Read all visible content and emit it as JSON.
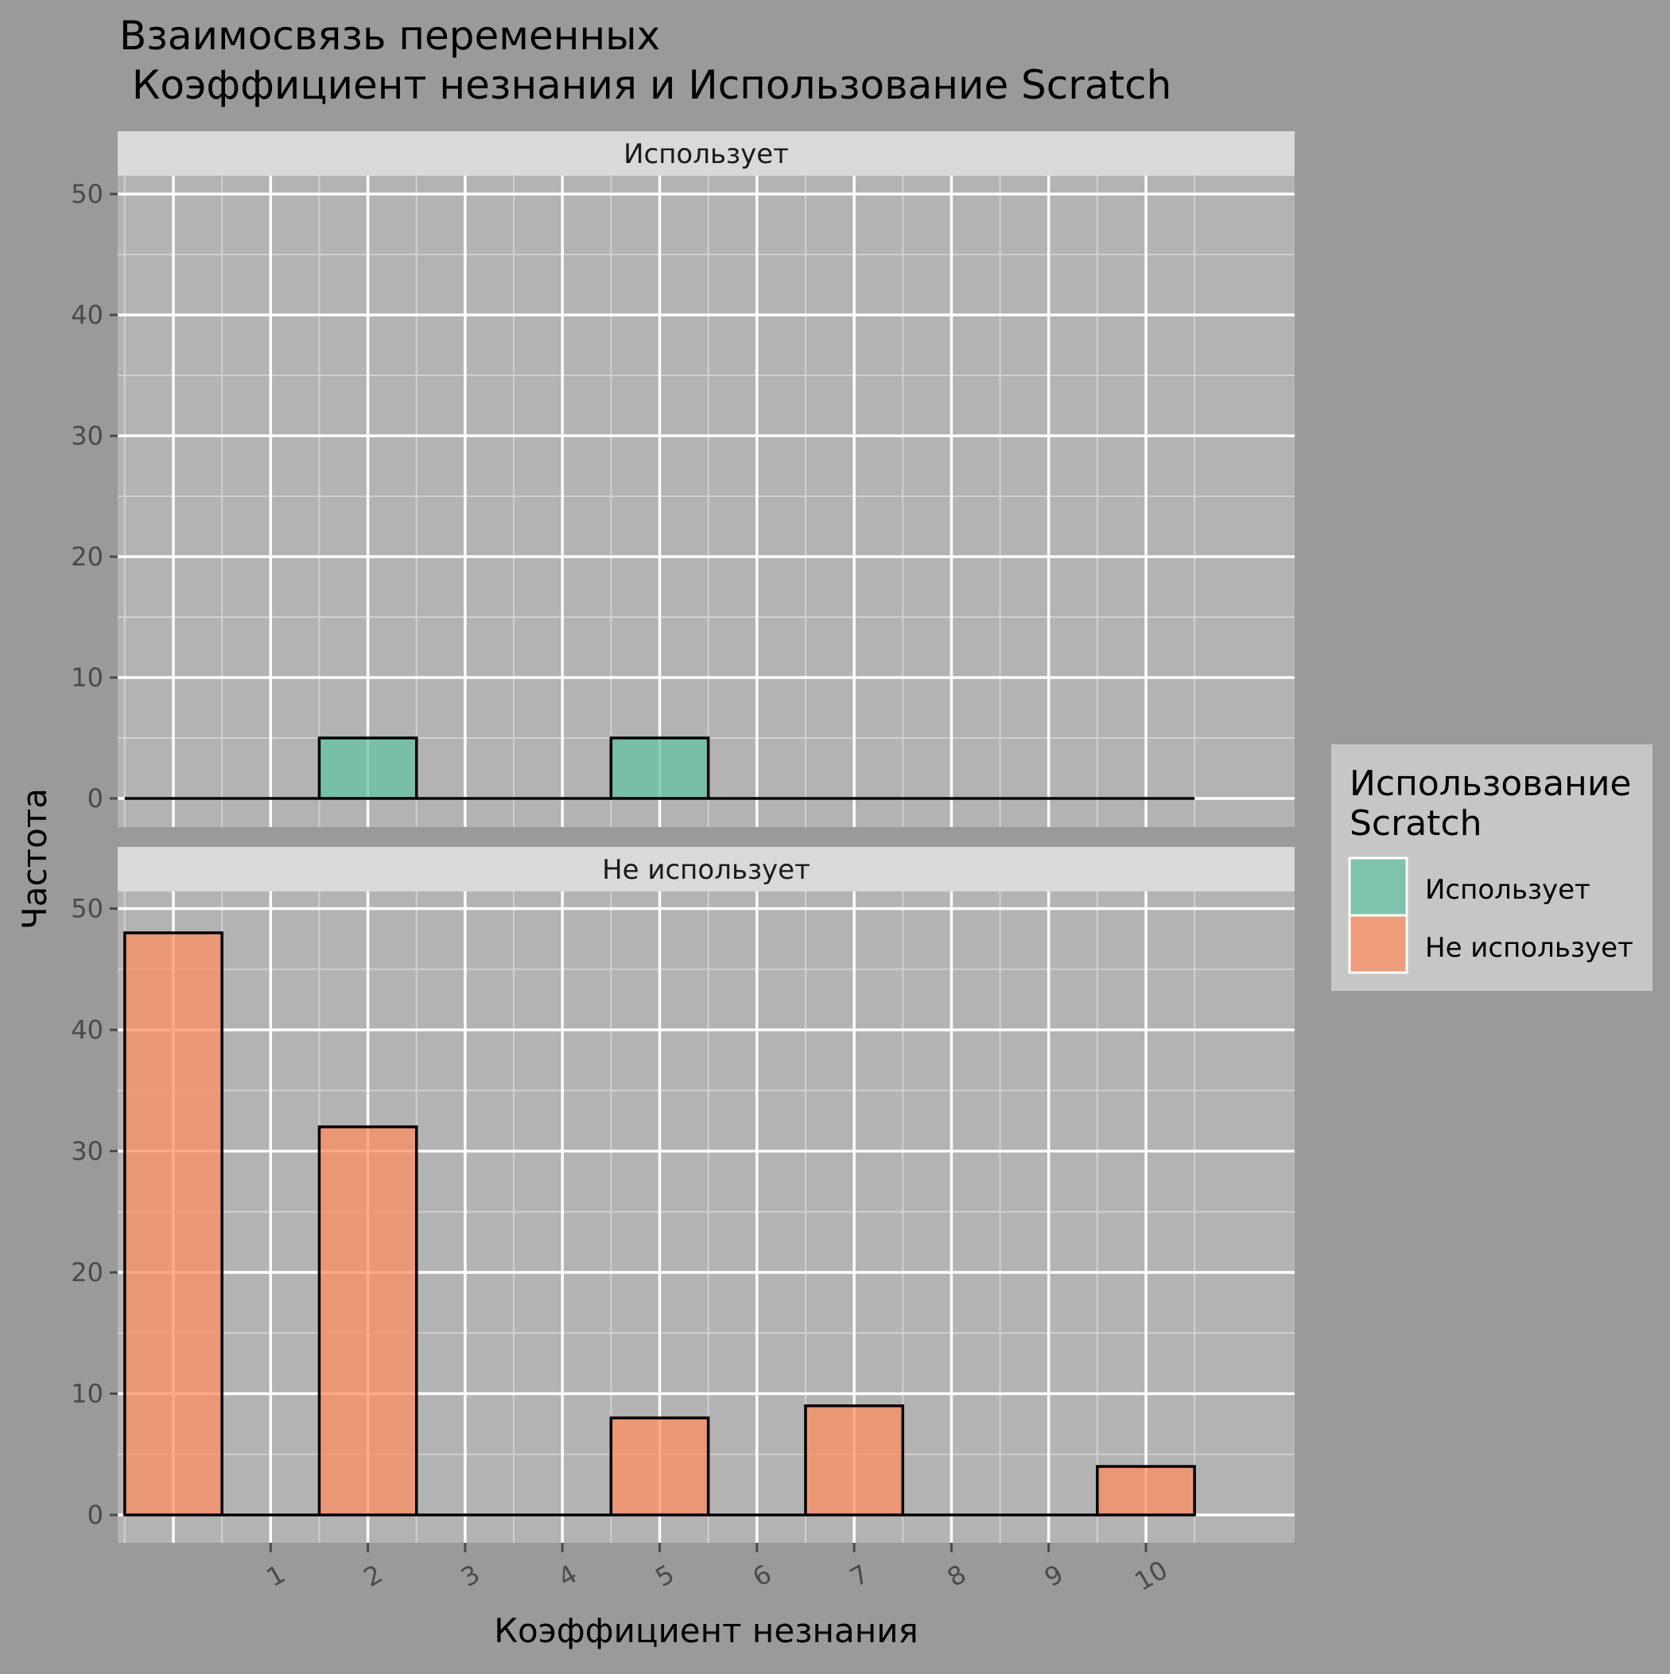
{
  "chart_data": {
    "type": "bar",
    "title_line1": "Взаимосвязь переменных",
    "title_line2": " Коэффициент незнания и Использование Scratch",
    "xlabel": "Коэффициент незнания",
    "ylabel": "Частота",
    "x_ticks": [
      "1",
      "2",
      "3",
      "4",
      "5",
      "6",
      "7",
      "8",
      "9",
      "10"
    ],
    "y_ticks": [
      0,
      10,
      20,
      30,
      40,
      50
    ],
    "ylim": [
      0,
      52
    ],
    "grid": true,
    "bins": [
      0,
      1,
      2,
      3,
      4,
      5,
      6,
      7,
      8,
      9,
      10
    ],
    "panels": [
      {
        "strip_label": "Использует",
        "color": "#66c2a5",
        "values": [
          0,
          0,
          5,
          0,
          0,
          5,
          0,
          0,
          0,
          0,
          0
        ]
      },
      {
        "strip_label": "Не использует",
        "color": "#fc8d62",
        "values": [
          48,
          0,
          32,
          0,
          0,
          8,
          0,
          9,
          0,
          0,
          4
        ]
      }
    ],
    "legend": {
      "title_line1": "Использование",
      "title_line2": "Scratch",
      "position": "right",
      "items": [
        {
          "label": "Использует",
          "color": "#66c2a5"
        },
        {
          "label": "Не использует",
          "color": "#fc8d62"
        }
      ]
    }
  }
}
